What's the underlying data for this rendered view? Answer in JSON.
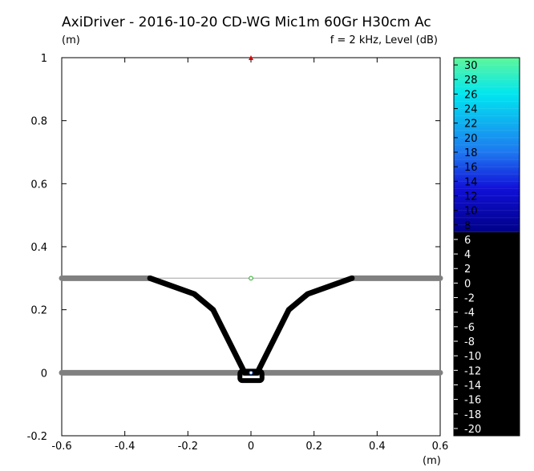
{
  "chart_data": {
    "type": "heatmap",
    "title": "AxiDriver - 2016-10-20 CD-WG Mic1m 60Gr H30cm Ac",
    "subtitle": "f = 2 kHz, Level  (dB)",
    "xlabel": "(m)",
    "ylabel": "(m)",
    "xlim": [
      -0.6,
      0.6
    ],
    "ylim": [
      -0.2,
      1.0
    ],
    "x_ticks": [
      "-0.6",
      "-0.4",
      "-0.2",
      "0",
      "0.2",
      "0.4",
      "0.6"
    ],
    "y_ticks": [
      "1",
      "0.8",
      "0.6",
      "0.4",
      "0.2",
      "0",
      "-0.2"
    ],
    "x_tick_values": [
      -0.6,
      -0.4,
      -0.2,
      0,
      0.2,
      0.4,
      0.6
    ],
    "y_tick_values": [
      1,
      0.8,
      0.6,
      0.4,
      0.2,
      0,
      -0.2
    ],
    "colorbar": {
      "labels": [
        "30",
        "28",
        "26",
        "24",
        "22",
        "20",
        "18",
        "16",
        "14",
        "12",
        "10",
        "8",
        "6",
        "4",
        "2",
        "0",
        "-2",
        "-4",
        "-6",
        "-8",
        "-10",
        "-12",
        "-14",
        "-16",
        "-18",
        "-20"
      ],
      "values": [
        30,
        28,
        26,
        24,
        22,
        20,
        18,
        16,
        14,
        12,
        10,
        8,
        6,
        4,
        2,
        0,
        -2,
        -4,
        -6,
        -8,
        -10,
        -12,
        -14,
        -16,
        -18,
        -20
      ],
      "range": [
        -21,
        31
      ],
      "black_below": 7,
      "colors": {
        "top": "#5ef79a",
        "cyan": "#00e6f0",
        "mid_blue": "#1e78f0",
        "blue": "#1010d8",
        "dark_blue": "#000088",
        "black": "#000000"
      }
    },
    "geometry": {
      "baffle_lines": [
        {
          "x": [
            -0.6,
            -0.32
          ],
          "y": [
            0.3,
            0.3
          ]
        },
        {
          "x": [
            0.32,
            0.6
          ],
          "y": [
            0.3,
            0.3
          ]
        },
        {
          "x": [
            -0.6,
            0.6
          ],
          "y": [
            0.0,
            0.0
          ]
        }
      ],
      "aperture_line": {
        "x": [
          -0.32,
          0.32
        ],
        "y": [
          0.3,
          0.3
        ]
      },
      "waveguide_profile": {
        "x": [
          0.32,
          0.18,
          0.12,
          0.02,
          -0.02,
          -0.12,
          -0.18,
          -0.32
        ],
        "y": [
          0.3,
          0.25,
          0.2,
          0.0,
          0.0,
          0.2,
          0.25,
          0.3
        ]
      },
      "driver_box": {
        "x": [
          -0.035,
          0.035
        ],
        "y": [
          -0.025,
          0.005
        ]
      },
      "mic_point": {
        "x": 0,
        "y": 1.0
      },
      "aperture_center": {
        "x": 0,
        "y": 0.3
      },
      "source_point": {
        "x": 0,
        "y": 0.0
      }
    },
    "colors": {
      "baffle": "#808080",
      "waveguide": "#000000",
      "aperture": "#bbbbbb",
      "mic": "#dd0000",
      "aperture_center": "#22aa22"
    }
  }
}
